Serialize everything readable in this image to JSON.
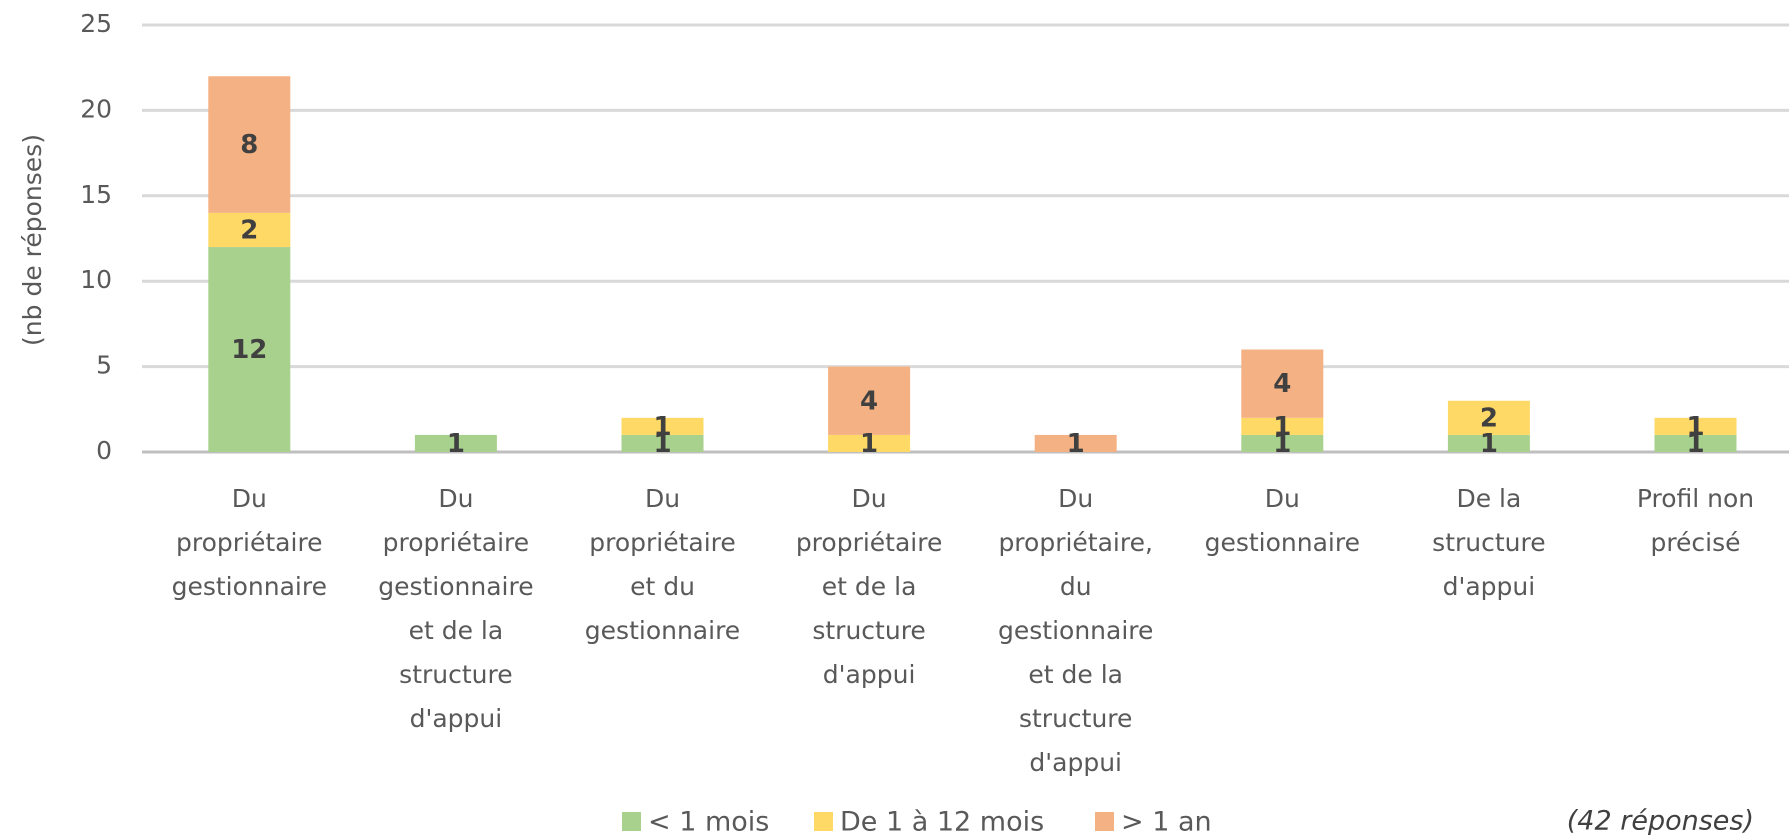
{
  "chart_data": {
    "type": "bar",
    "stacked": true,
    "y_label": "(nb de réponses)",
    "annotation": "(42 réponses)",
    "categories": [
      "Du propriétaire gestionnaire",
      "Du propriétaire gestionnaire et de la structure d'appui",
      "Du propriétaire et du gestionnaire",
      "Du propriétaire et de la structure d'appui",
      "Du propriétaire, du gestionnaire et de la structure d'appui",
      "Du gestionnaire",
      "De la structure d'appui",
      "Profil non précisé"
    ],
    "series": [
      {
        "name": "< 1 mois",
        "color": "#a9d18e",
        "values": [
          12,
          1,
          1,
          null,
          null,
          1,
          1,
          1
        ]
      },
      {
        "name": "De 1 à 12 mois",
        "color": "#ffd966",
        "values": [
          2,
          null,
          1,
          1,
          null,
          1,
          2,
          1
        ]
      },
      {
        "name": "> 1 an",
        "color": "#f4b183",
        "values": [
          8,
          null,
          null,
          4,
          1,
          4,
          null,
          null
        ]
      }
    ],
    "ylim": [
      0,
      25
    ],
    "yticks": [
      0,
      5,
      10,
      15,
      20,
      25
    ],
    "grid": true,
    "legend": "bottom"
  }
}
